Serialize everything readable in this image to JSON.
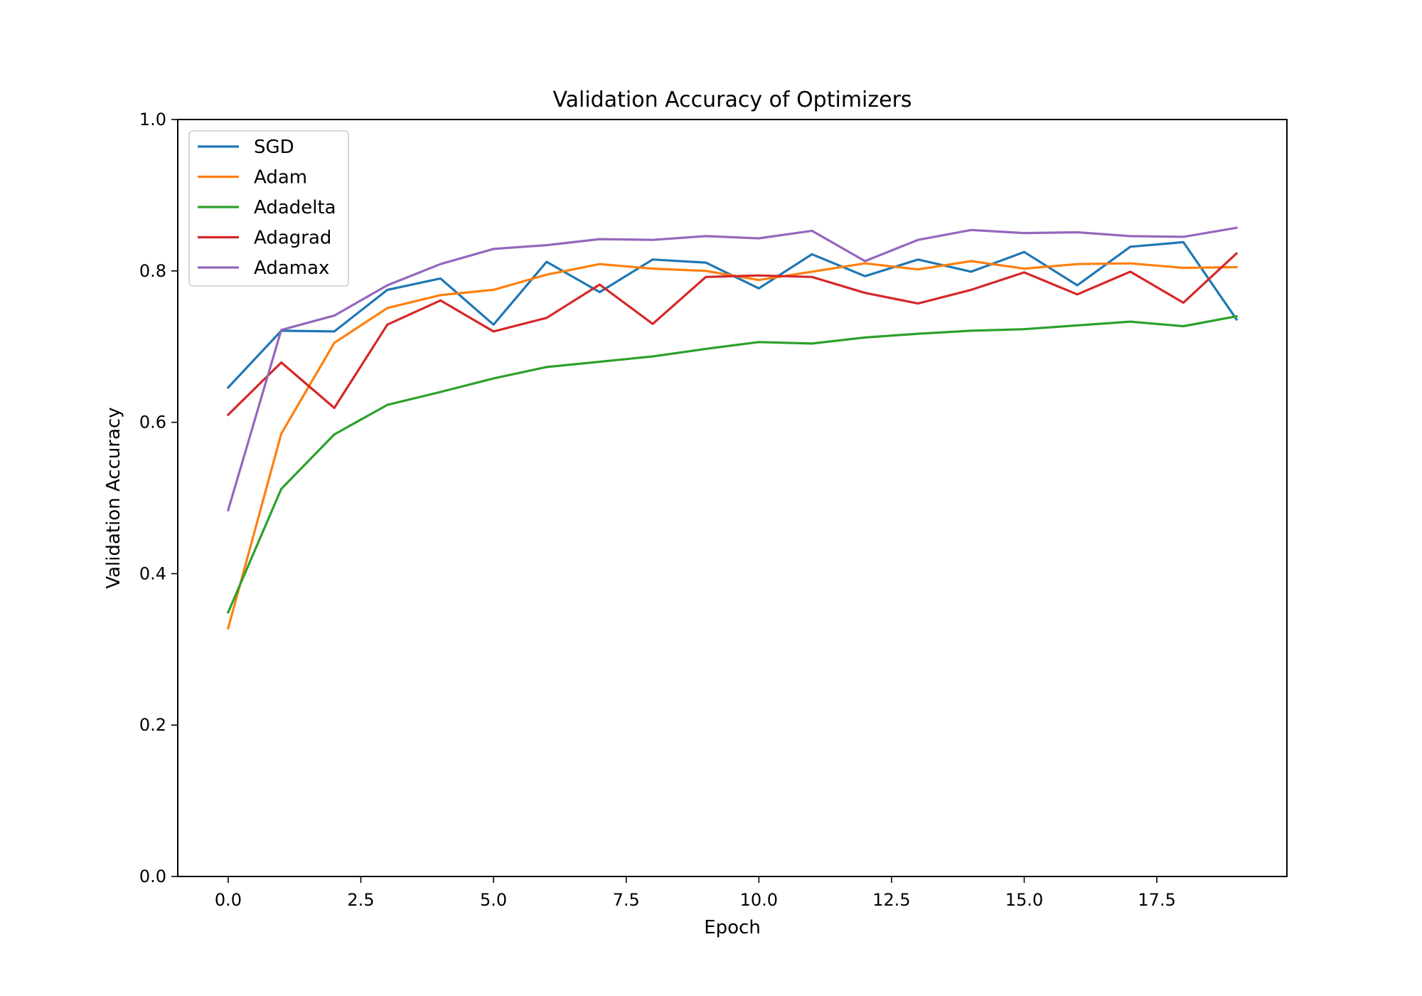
{
  "chart_data": {
    "type": "line",
    "title": "Validation Accuracy of Optimizers",
    "xlabel": "Epoch",
    "ylabel": "Validation Accuracy",
    "xlim": [
      -0.95,
      19.95
    ],
    "ylim": [
      0.0,
      1.0
    ],
    "xticks": [
      "0.0",
      "2.5",
      "5.0",
      "7.5",
      "10.0",
      "12.5",
      "15.0",
      "17.5"
    ],
    "yticks": [
      "0.0",
      "0.2",
      "0.4",
      "0.6",
      "0.8",
      "1.0"
    ],
    "grid": false,
    "legend_position": "top-left",
    "x": [
      0,
      1,
      2,
      3,
      4,
      5,
      6,
      7,
      8,
      9,
      10,
      11,
      12,
      13,
      14,
      15,
      16,
      17,
      18,
      19
    ],
    "series": [
      {
        "name": "SGD",
        "color": "#1f77b4",
        "values": [
          0.646,
          0.721,
          0.72,
          0.775,
          0.79,
          0.729,
          0.812,
          0.772,
          0.815,
          0.811,
          0.777,
          0.822,
          0.793,
          0.815,
          0.799,
          0.825,
          0.781,
          0.832,
          0.838,
          0.736
        ]
      },
      {
        "name": "Adam",
        "color": "#ff7f0e",
        "values": [
          0.328,
          0.585,
          0.705,
          0.751,
          0.768,
          0.775,
          0.795,
          0.809,
          0.803,
          0.8,
          0.788,
          0.799,
          0.81,
          0.802,
          0.813,
          0.803,
          0.809,
          0.81,
          0.804,
          0.805
        ]
      },
      {
        "name": "Adadelta",
        "color": "#2ca02c",
        "values": [
          0.349,
          0.512,
          0.584,
          0.623,
          0.64,
          0.658,
          0.673,
          0.68,
          0.687,
          0.697,
          0.706,
          0.704,
          0.712,
          0.717,
          0.721,
          0.723,
          0.728,
          0.733,
          0.727,
          0.74
        ]
      },
      {
        "name": "Adagrad",
        "color": "#d62728",
        "values": [
          0.61,
          0.679,
          0.619,
          0.729,
          0.761,
          0.72,
          0.738,
          0.782,
          0.73,
          0.792,
          0.794,
          0.792,
          0.771,
          0.757,
          0.775,
          0.798,
          0.769,
          0.799,
          0.758,
          0.823
        ]
      },
      {
        "name": "Adamax",
        "color": "#9467bd",
        "values": [
          0.484,
          0.722,
          0.741,
          0.781,
          0.809,
          0.829,
          0.834,
          0.842,
          0.841,
          0.846,
          0.843,
          0.853,
          0.813,
          0.841,
          0.854,
          0.85,
          0.851,
          0.846,
          0.845,
          0.857
        ]
      }
    ]
  }
}
